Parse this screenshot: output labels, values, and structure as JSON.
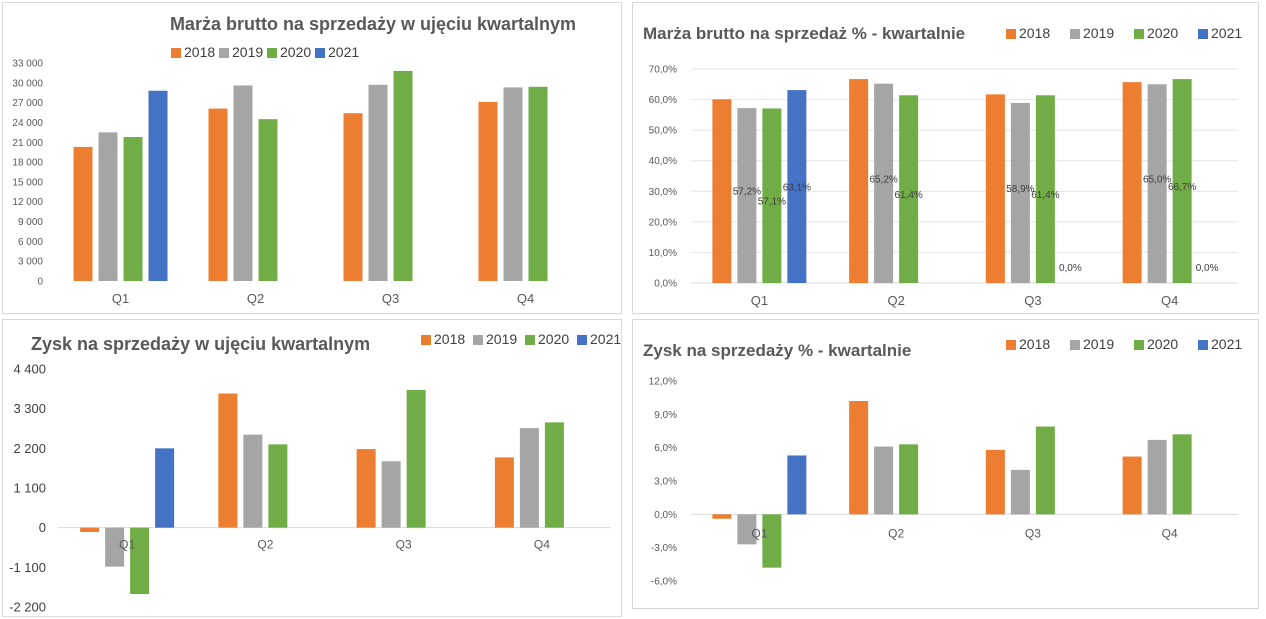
{
  "colors": {
    "2018": "#ed7d31",
    "2019": "#a5a5a5",
    "2020": "#70ad47",
    "2021": "#4472c4"
  },
  "chart_data": [
    {
      "type": "bar",
      "title": "Marża brutto na sprzedaży w ujęciu kwartalnym",
      "categories": [
        "Q1",
        "Q2",
        "Q3",
        "Q4"
      ],
      "series": [
        {
          "name": "2018",
          "values": [
            20300,
            26100,
            25400,
            27100
          ]
        },
        {
          "name": "2019",
          "values": [
            22500,
            29600,
            29700,
            29300
          ]
        },
        {
          "name": "2020",
          "values": [
            21800,
            24500,
            31800,
            29400
          ]
        },
        {
          "name": "2021",
          "values": [
            28800,
            null,
            null,
            null
          ]
        }
      ],
      "ylim": [
        0,
        33000
      ],
      "yticks": [
        "0",
        "3 000",
        "6 000",
        "9 000",
        "12 000",
        "15 000",
        "18 000",
        "21 000",
        "24 000",
        "27 000",
        "30 000",
        "33 000"
      ],
      "legend": "top",
      "grid": false
    },
    {
      "type": "bar",
      "title": "Marża brutto na sprzedaż % - kwartalnie",
      "categories": [
        "Q1",
        "Q2",
        "Q3",
        "Q4"
      ],
      "series": [
        {
          "name": "2018",
          "values": [
            0.601,
            0.667,
            0.617,
            0.657
          ]
        },
        {
          "name": "2019",
          "values": [
            0.572,
            0.652,
            0.589,
            0.65
          ]
        },
        {
          "name": "2020",
          "values": [
            0.571,
            0.614,
            0.614,
            0.667
          ]
        },
        {
          "name": "2021",
          "values": [
            0.631,
            0.0,
            0.0,
            0.0
          ]
        }
      ],
      "data_labels": [
        {
          "label": "57,2%",
          "category": "Q1",
          "series": "2019"
        },
        {
          "label": "57,1%",
          "category": "Q1",
          "series": "2020"
        },
        {
          "label": "63,1%",
          "category": "Q1",
          "series": "2021"
        },
        {
          "label": "65,2%",
          "category": "Q2",
          "series": "2019"
        },
        {
          "label": "61,4%",
          "category": "Q2",
          "series": "2020"
        },
        {
          "label": "58,9%",
          "category": "Q3",
          "series": "2019"
        },
        {
          "label": "61,4%",
          "category": "Q3",
          "series": "2020"
        },
        {
          "label": "0,0%",
          "category": "Q3",
          "series": "2021"
        },
        {
          "label": "65,0%",
          "category": "Q4",
          "series": "2019"
        },
        {
          "label": "66,7%",
          "category": "Q4",
          "series": "2020"
        },
        {
          "label": "0,0%",
          "category": "Q4",
          "series": "2021"
        }
      ],
      "ylim": [
        0,
        0.7
      ],
      "yticks": [
        "0,0%",
        "10,0%",
        "20,0%",
        "30,0%",
        "40,0%",
        "50,0%",
        "60,0%",
        "70,0%"
      ],
      "legend": "top-right",
      "grid": true
    },
    {
      "type": "bar",
      "title": "Zysk na sprzedaży w ujęciu kwartalnym",
      "categories": [
        "Q1",
        "Q2",
        "Q3",
        "Q4"
      ],
      "series": [
        {
          "name": "2018",
          "values": [
            -120,
            3720,
            2180,
            1950
          ]
        },
        {
          "name": "2019",
          "values": [
            -1080,
            2580,
            1840,
            2760
          ]
        },
        {
          "name": "2020",
          "values": [
            -1840,
            2310,
            3820,
            2920
          ]
        },
        {
          "name": "2021",
          "values": [
            2200,
            null,
            null,
            null
          ]
        }
      ],
      "ylim": [
        -2200,
        4400
      ],
      "yticks": [
        "-2 200",
        "-1 100",
        "0",
        "1 100",
        "2 200",
        "3 300",
        "4 400"
      ],
      "legend": "top-right",
      "grid": false
    },
    {
      "type": "bar",
      "title": "Zysk na sprzedaży % - kwartalnie",
      "categories": [
        "Q1",
        "Q2",
        "Q3",
        "Q4"
      ],
      "series": [
        {
          "name": "2018",
          "values": [
            -0.004,
            0.102,
            0.058,
            0.052
          ]
        },
        {
          "name": "2019",
          "values": [
            -0.027,
            0.061,
            0.04,
            0.067
          ]
        },
        {
          "name": "2020",
          "values": [
            -0.048,
            0.063,
            0.079,
            0.072
          ]
        },
        {
          "name": "2021",
          "values": [
            0.053,
            null,
            null,
            null
          ]
        }
      ],
      "ylim": [
        -0.06,
        0.12
      ],
      "yticks": [
        "-6,0%",
        "-3,0%",
        "0,0%",
        "3,0%",
        "6,0%",
        "9,0%",
        "12,0%"
      ],
      "legend": "top-right",
      "grid": false
    }
  ]
}
